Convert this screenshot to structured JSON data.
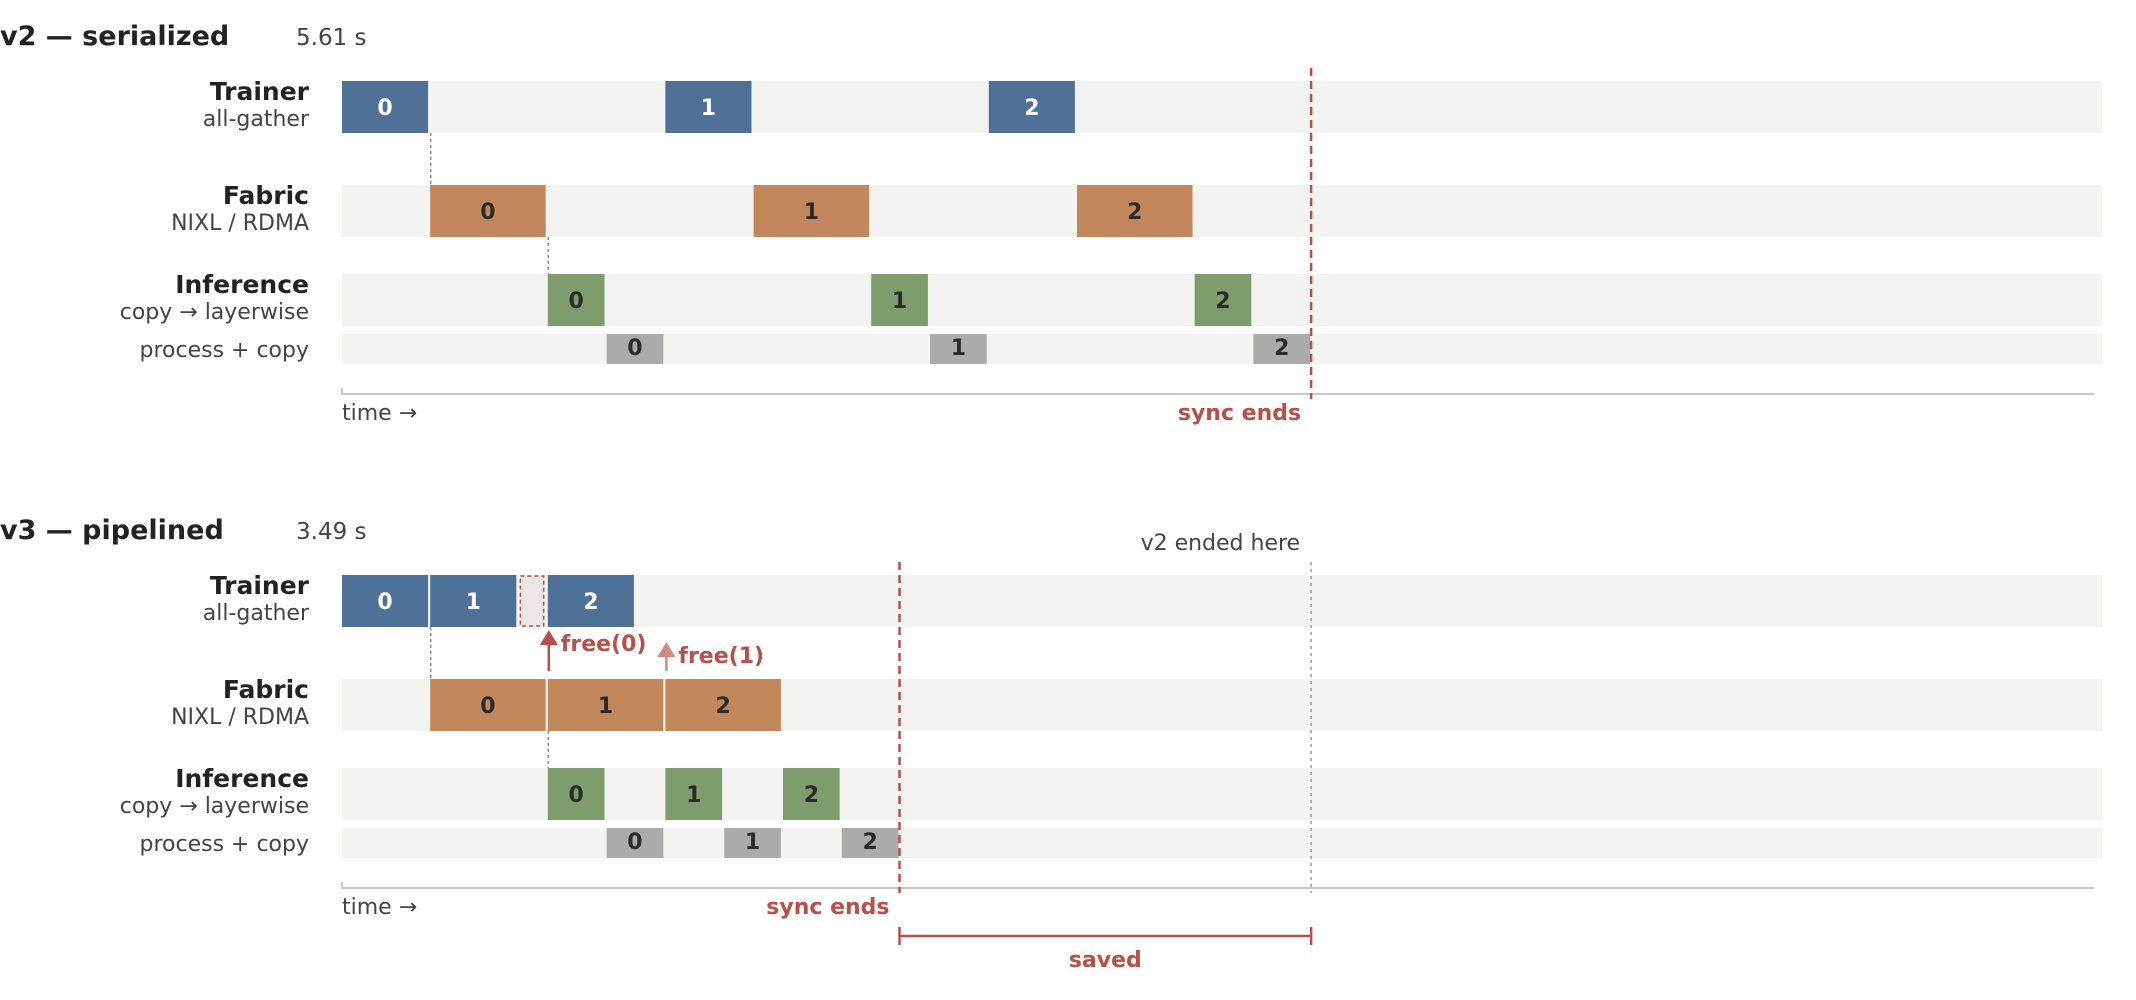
{
  "colors": {
    "trainer": "#4f7198",
    "fabric": "#c2875a",
    "inference": "#7d9e6c",
    "process": "#ababab",
    "track": "#f3f3f2",
    "accent": "#b5504a",
    "text": "#222222",
    "muted": "#444444"
  },
  "lane_labels": {
    "trainer": {
      "main": "Trainer",
      "sub": "all-gather"
    },
    "fabric": {
      "main": "Fabric",
      "sub": "NIXL / RDMA"
    },
    "inference": {
      "main": "Inference",
      "sub": "copy → layerwise"
    },
    "process": {
      "main": "process + copy"
    }
  },
  "axis_label": "time →",
  "sync_label": "sync ends",
  "panels": [
    {
      "title": "v2 — serialized",
      "duration": "5.61 s",
      "lanes": {
        "trainer": [
          {
            "label": "0",
            "start": 0.0,
            "end": 0.41
          },
          {
            "label": "1",
            "start": 1.54,
            "end": 1.95
          },
          {
            "label": "2",
            "start": 3.08,
            "end": 3.49
          }
        ],
        "fabric": [
          {
            "label": "0",
            "start": 0.42,
            "end": 0.97
          },
          {
            "label": "1",
            "start": 1.96,
            "end": 2.51
          },
          {
            "label": "2",
            "start": 3.5,
            "end": 4.05
          }
        ],
        "inference": [
          {
            "label": "0",
            "start": 0.98,
            "end": 1.25
          },
          {
            "label": "1",
            "start": 2.52,
            "end": 2.79
          },
          {
            "label": "2",
            "start": 4.06,
            "end": 4.33
          }
        ],
        "process": [
          {
            "label": "0",
            "start": 1.26,
            "end": 1.53
          },
          {
            "label": "1",
            "start": 2.8,
            "end": 3.07
          },
          {
            "label": "2",
            "start": 4.34,
            "end": 4.61
          }
        ]
      },
      "sync_end": 4.61,
      "connectors": [
        {
          "at": 0.42,
          "from": "trainer",
          "to": "fabric"
        },
        {
          "at": 0.98,
          "from": "fabric",
          "to": "inference"
        }
      ]
    },
    {
      "title": "v3 — pipelined",
      "duration": "3.49 s",
      "lanes": {
        "trainer": [
          {
            "label": "0",
            "start": 0.0,
            "end": 0.41
          },
          {
            "label": "1",
            "start": 0.42,
            "end": 0.83
          },
          {
            "label": "2",
            "start": 0.98,
            "end": 1.39
          }
        ],
        "fabric": [
          {
            "label": "0",
            "start": 0.42,
            "end": 0.97
          },
          {
            "label": "1",
            "start": 0.98,
            "end": 1.53
          },
          {
            "label": "2",
            "start": 1.54,
            "end": 2.09
          }
        ],
        "inference": [
          {
            "label": "0",
            "start": 0.98,
            "end": 1.25
          },
          {
            "label": "1",
            "start": 1.54,
            "end": 1.81
          },
          {
            "label": "2",
            "start": 2.1,
            "end": 2.37
          }
        ],
        "process": [
          {
            "label": "0",
            "start": 1.26,
            "end": 1.53
          },
          {
            "label": "1",
            "start": 1.82,
            "end": 2.09
          },
          {
            "label": "2",
            "start": 2.38,
            "end": 2.65
          }
        ]
      },
      "trainer_wait": {
        "start": 0.84,
        "end": 0.97
      },
      "sync_end": 2.65,
      "v2_end": 4.61,
      "v2_end_label": "v2 ended here",
      "frees": [
        {
          "label": "free(0)",
          "at": 0.98,
          "emphasis": true
        },
        {
          "label": "free(1)",
          "at": 1.54,
          "emphasis": false
        }
      ],
      "saved_label": "saved",
      "connectors": [
        {
          "at": 0.42,
          "from": "trainer",
          "to": "fabric"
        },
        {
          "at": 0.98,
          "from": "fabric",
          "to": "inference"
        }
      ]
    }
  ]
}
